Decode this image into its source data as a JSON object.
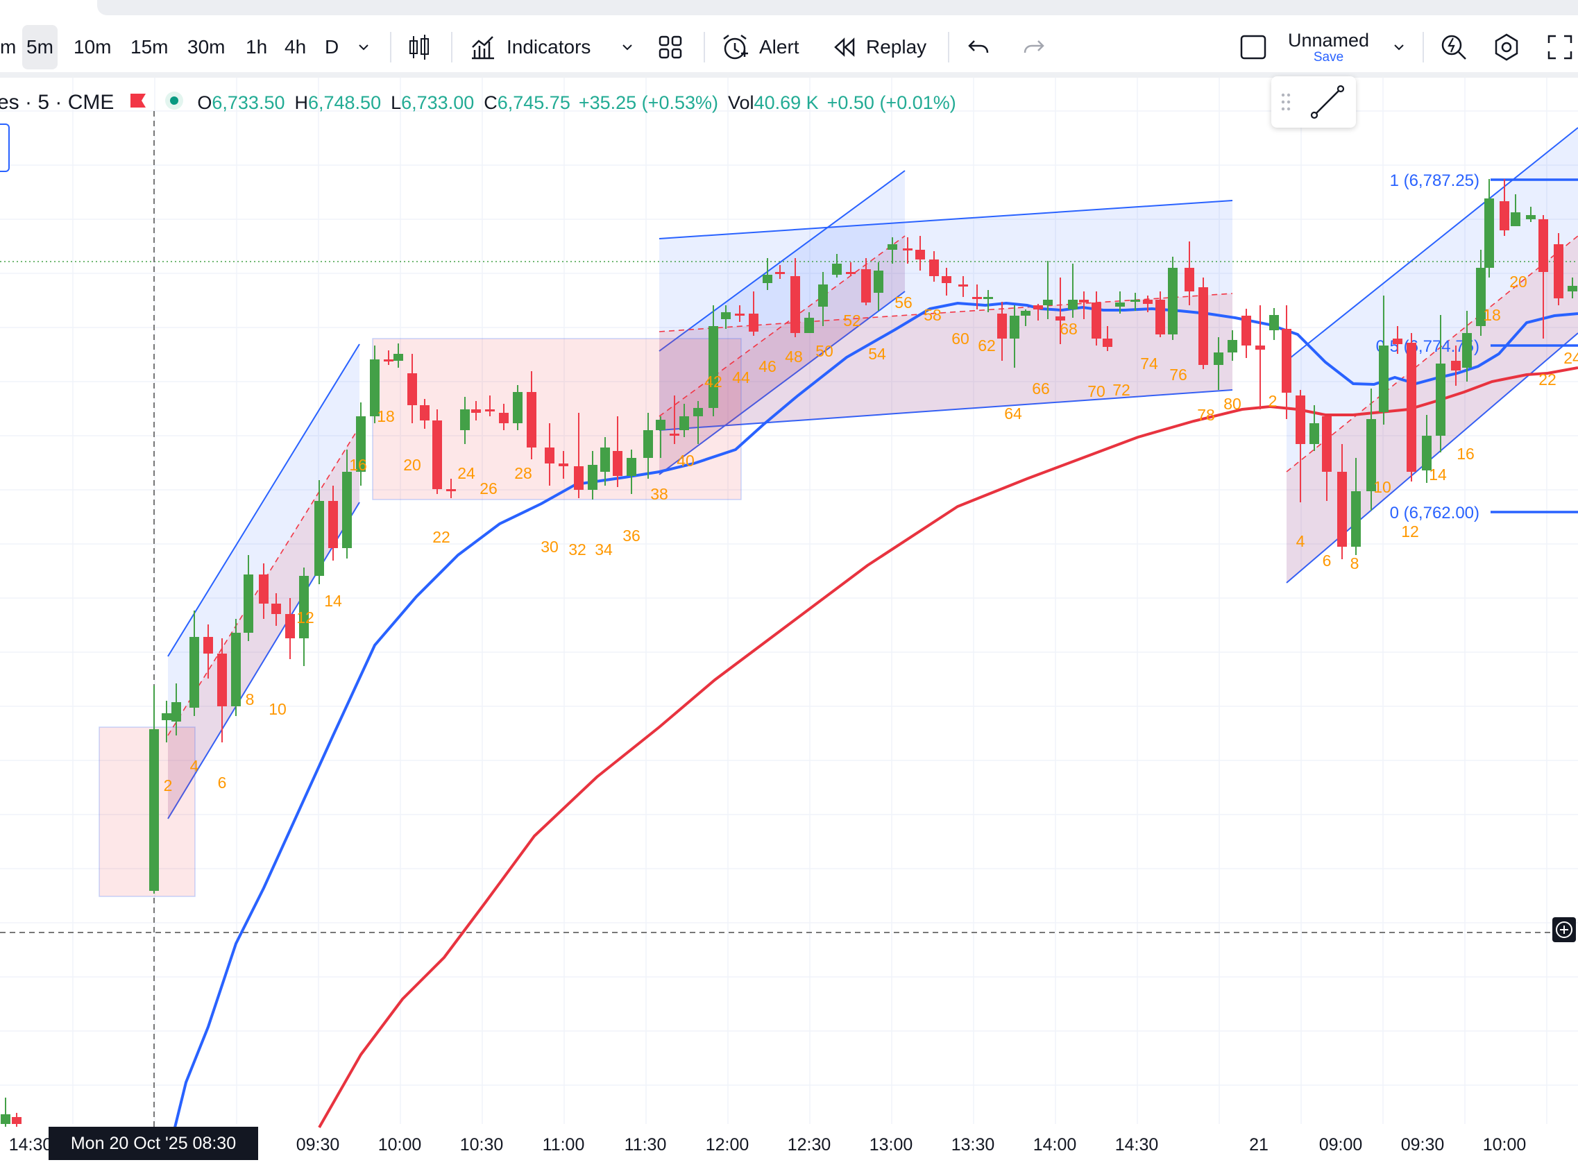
{
  "toolbar": {
    "intervals": [
      {
        "label": "m",
        "active": false
      },
      {
        "label": "5m",
        "active": true
      },
      {
        "label": "10m",
        "active": false
      },
      {
        "label": "15m",
        "active": false
      },
      {
        "label": "30m",
        "active": false
      },
      {
        "label": "1h",
        "active": false
      },
      {
        "label": "4h",
        "active": false
      },
      {
        "label": "D",
        "active": false
      }
    ],
    "indicators_label": "Indicators",
    "alert_label": "Alert",
    "replay_label": "Replay",
    "layout_name": "Unnamed",
    "layout_save": "Save"
  },
  "legend": {
    "symbol": "es · 5 · CME",
    "o_label": "O",
    "o_value": "6,733.50",
    "h_label": "H",
    "h_value": "6,748.50",
    "l_label": "L",
    "l_value": "6,733.00",
    "c_label": "C",
    "c_value": "6,745.75",
    "change": "+35.25 (+0.53%)",
    "vol_label": "Vol",
    "vol_value": "40.69 K",
    "vol_change": "+0.50 (+0.01%)",
    "up_color": "#22ab94",
    "down_color": "#f23645"
  },
  "fib": {
    "level_1": "1 (6,787.25)",
    "level_05": "0.5 (6,774.75)",
    "level_0": "0 (6,762.00)"
  },
  "bar_numbers": [
    "2",
    "4",
    "6",
    "8",
    "10",
    "12",
    "14",
    "16",
    "18",
    "20",
    "22",
    "24",
    "26",
    "28",
    "30",
    "32",
    "34",
    "36",
    "38",
    "40",
    "42",
    "44",
    "46",
    "48",
    "50",
    "52",
    "54",
    "56",
    "58",
    "60",
    "62",
    "64",
    "66",
    "68",
    "70",
    "72",
    "74",
    "76",
    "78",
    "80",
    "2",
    "4",
    "6",
    "8",
    "10",
    "12",
    "14",
    "16",
    "18",
    "20",
    "22",
    "24"
  ],
  "time_axis": {
    "ticks": [
      "14:30",
      "09:30",
      "10:00",
      "10:30",
      "11:00",
      "11:30",
      "12:00",
      "12:30",
      "13:00",
      "13:30",
      "14:00",
      "14:30",
      "21",
      "09:00",
      "09:30",
      "10:00"
    ],
    "crosshair_label": "Mon 20 Oct '25   08:30"
  },
  "colors": {
    "bull": "#43a047",
    "bear": "#ef3b49",
    "ema_fast": "#2962ff",
    "ema_slow": "#e8333f",
    "channel": "#2962ff",
    "bar_number": "#ff9800"
  }
}
